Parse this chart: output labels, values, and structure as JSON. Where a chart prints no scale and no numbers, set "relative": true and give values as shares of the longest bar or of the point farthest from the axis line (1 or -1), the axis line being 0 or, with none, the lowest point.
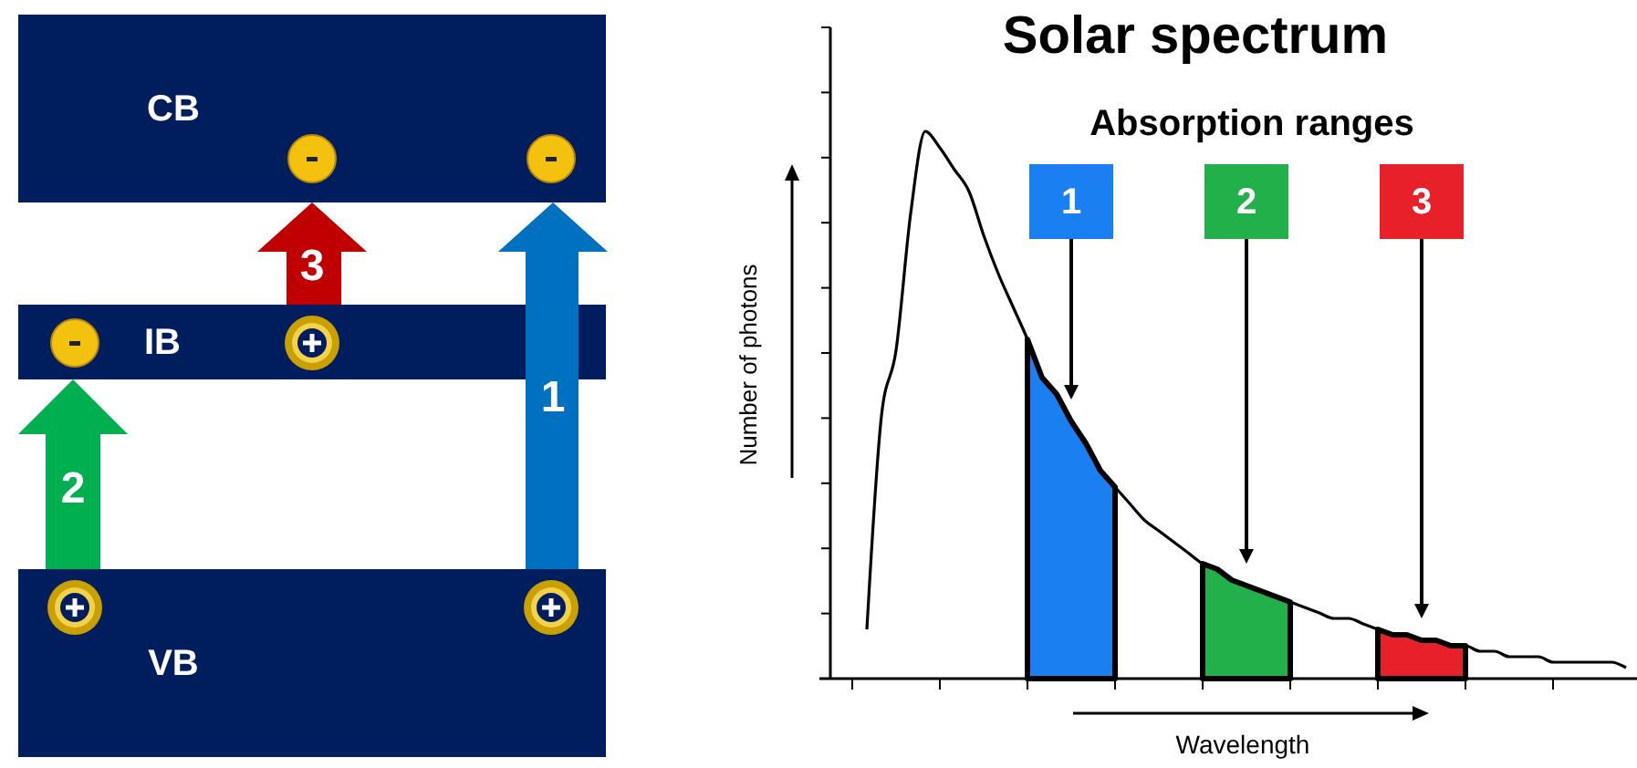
{
  "chart_data": [
    {
      "type": "other",
      "annotations": [
        "CB",
        "IB",
        "VB",
        "1",
        "2",
        "3"
      ]
    },
    {
      "type": "line",
      "title": "Solar spectrum",
      "xlabel": "Wavelength",
      "ylabel": "Number of photons",
      "relative": true,
      "annotations": [
        "Absorption ranges"
      ],
      "categories": [
        null,
        null,
        null,
        null,
        null,
        null,
        null,
        null,
        null,
        null,
        null,
        null,
        null,
        null,
        null,
        null,
        null,
        null,
        null,
        null,
        null,
        null,
        null,
        null,
        null,
        null,
        null,
        null,
        null,
        null,
        null,
        null,
        null,
        null,
        null,
        null,
        null,
        null,
        null,
        null,
        null,
        null,
        null,
        null,
        null,
        null,
        null,
        null,
        null,
        null,
        null,
        null,
        null,
        null,
        null
      ],
      "series": [
        {
          "color": "#000000",
          "values": [
            null,
            null,
            0.09,
            0.48,
            0.6,
            0.85,
            1,
            0.97,
            0.93,
            0.89,
            0.81,
            0.74,
            0.68,
            0.62,
            0.55,
            0.52,
            0.47,
            0.43,
            0.38,
            0.35,
            0.32,
            0.29,
            0.27,
            0.25,
            0.23,
            0.21,
            0.2,
            0.18,
            0.17,
            0.16,
            0.15,
            0.14,
            0.13,
            0.12,
            0.11,
            0.11,
            0.1,
            0.09,
            0.08,
            0.08,
            0.07,
            0.07,
            0.06,
            0.06,
            0.05,
            0.05,
            0.04,
            0.04,
            0.04,
            0.03,
            0.03,
            0.03,
            0.03,
            0.03,
            0.02
          ]
        },
        {
          "type": "area",
          "name": "1",
          "color": "#1a7ff0",
          "values": [
            null,
            null,
            null,
            null,
            null,
            null,
            null,
            null,
            null,
            null,
            null,
            null,
            null,
            0.62,
            0.55,
            0.52,
            0.47,
            0.43,
            0.38,
            0.35,
            null,
            null,
            null,
            null,
            null,
            null,
            null,
            null,
            null,
            null,
            null,
            null,
            null,
            null,
            null,
            null,
            null,
            null,
            null,
            null,
            null,
            null,
            null,
            null,
            null,
            null,
            null,
            null,
            null,
            null,
            null,
            null,
            null,
            null,
            null
          ]
        },
        {
          "type": "area",
          "name": "2",
          "color": "#22b04a",
          "values": [
            null,
            null,
            null,
            null,
            null,
            null,
            null,
            null,
            null,
            null,
            null,
            null,
            null,
            null,
            null,
            null,
            null,
            null,
            null,
            null,
            null,
            null,
            null,
            null,
            null,
            0.21,
            0.2,
            0.18,
            0.17,
            0.16,
            0.15,
            0.14,
            null,
            null,
            null,
            null,
            null,
            null,
            null,
            null,
            null,
            null,
            null,
            null,
            null,
            null,
            null,
            null,
            null,
            null,
            null,
            null,
            null,
            null,
            null
          ]
        },
        {
          "type": "area",
          "name": "3",
          "color": "#e8202a",
          "values": [
            null,
            null,
            null,
            null,
            null,
            null,
            null,
            null,
            null,
            null,
            null,
            null,
            null,
            null,
            null,
            null,
            null,
            null,
            null,
            null,
            null,
            null,
            null,
            null,
            null,
            null,
            null,
            null,
            null,
            null,
            null,
            null,
            null,
            null,
            null,
            null,
            null,
            0.09,
            0.08,
            0.08,
            0.07,
            0.07,
            0.06,
            0.06,
            null,
            null,
            null,
            null,
            null,
            null,
            null,
            null,
            null,
            null,
            null
          ]
        }
      ]
    }
  ]
}
